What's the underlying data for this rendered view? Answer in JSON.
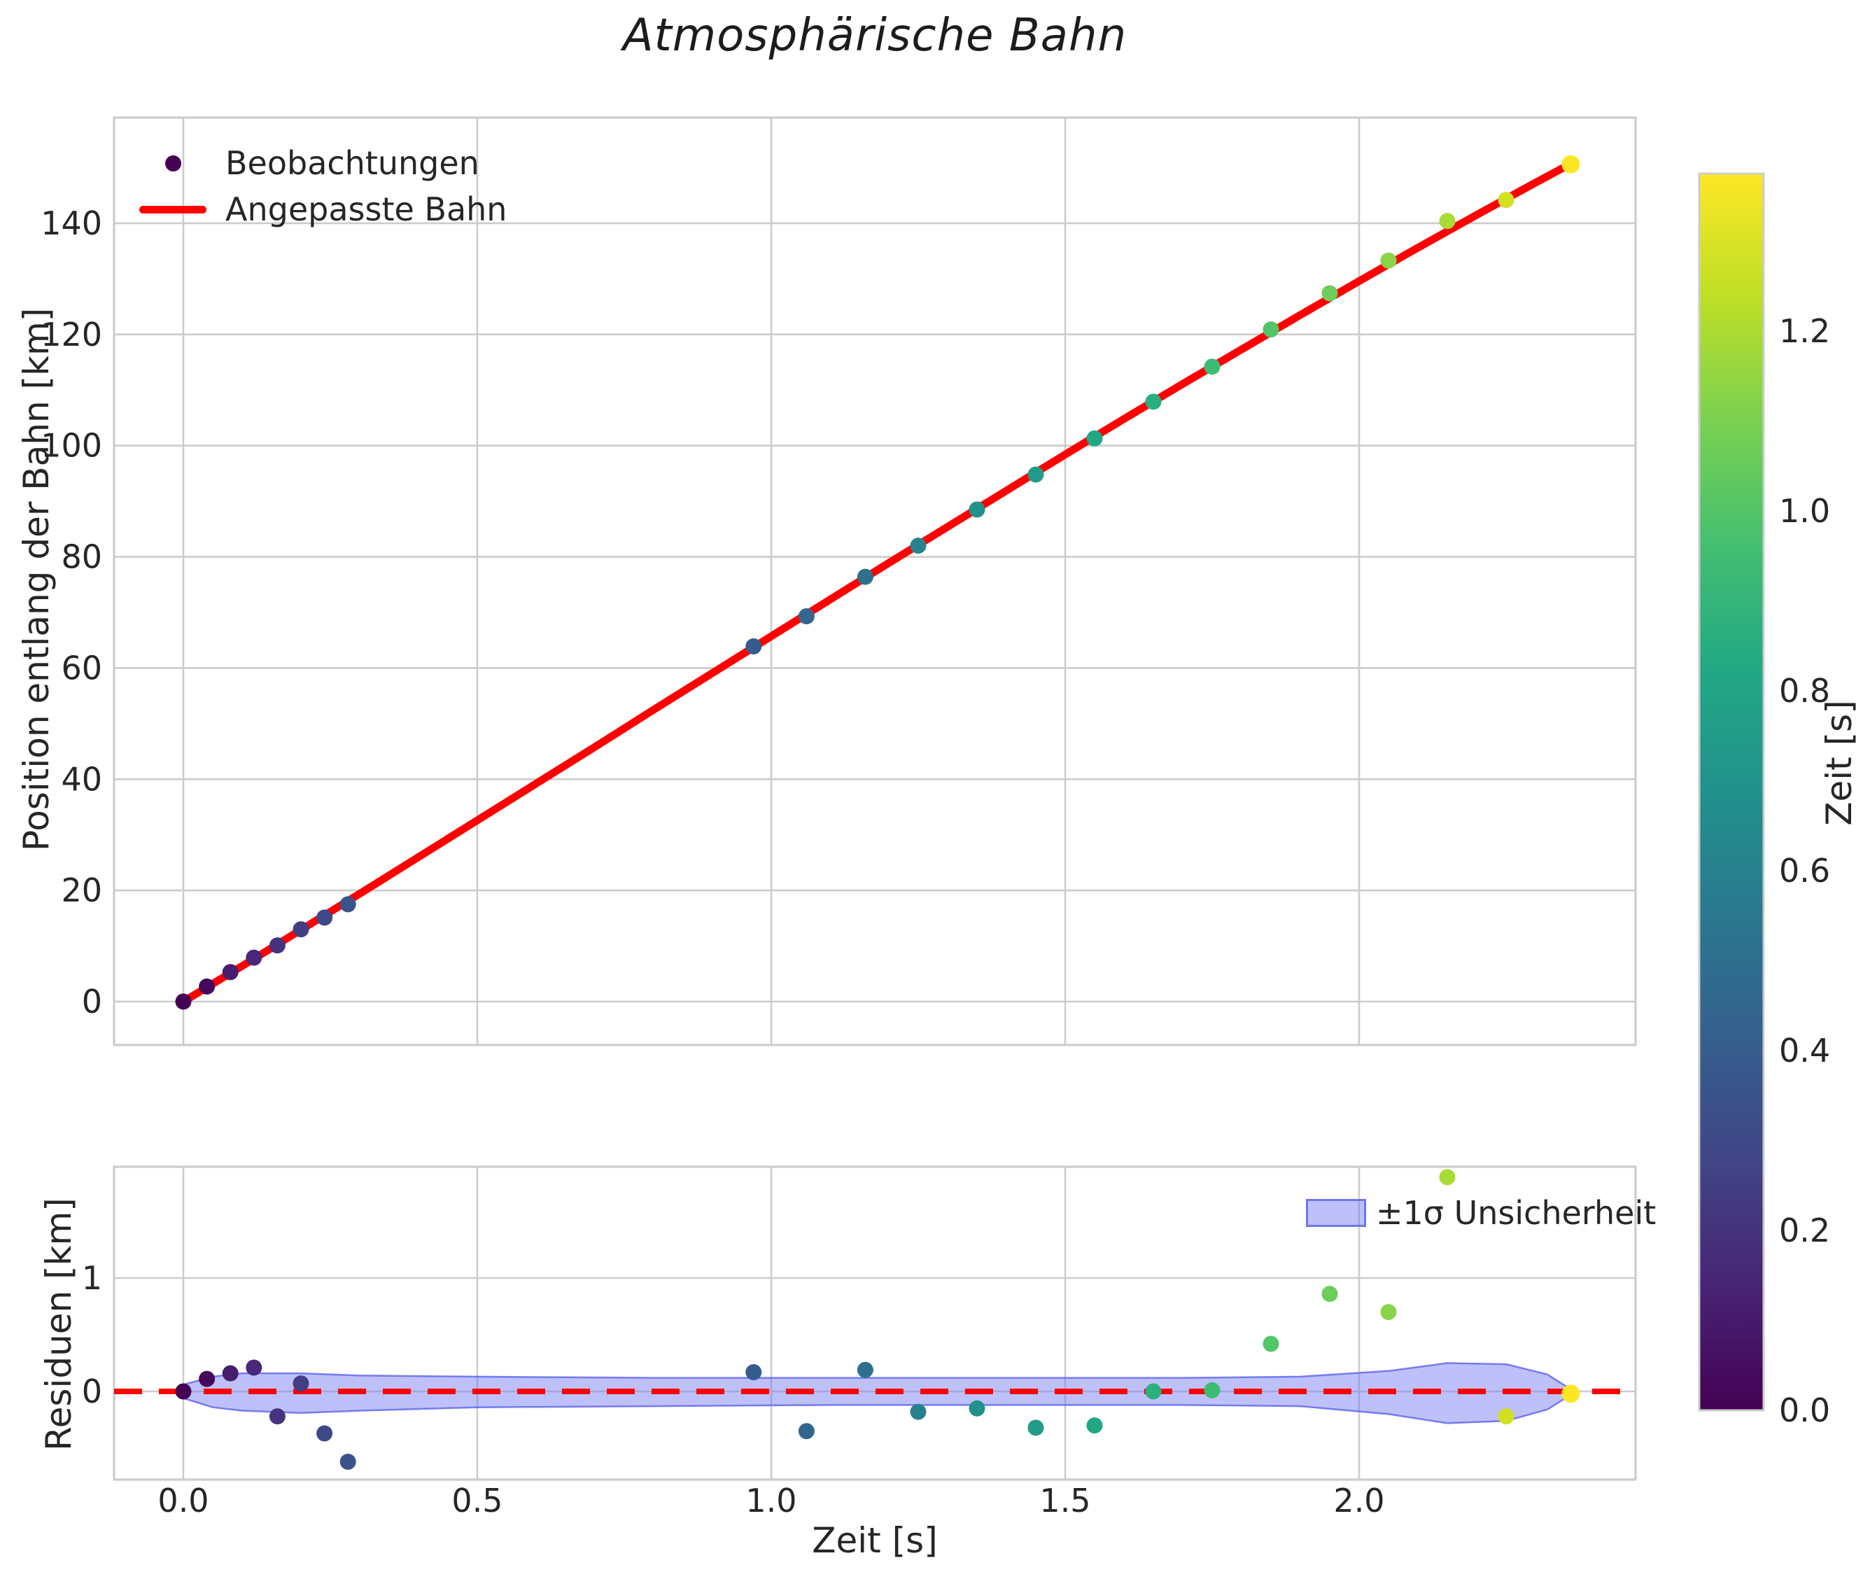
{
  "title": "Atmosphärische Bahn",
  "colors": {
    "fit_line": "#ff0000",
    "zero_line": "#ff0000",
    "grid": "#cccccc",
    "spine": "#cccccc",
    "text": "#262626",
    "band_fill": "rgba(110,115,245,0.45)",
    "band_stroke": "rgba(92,97,238,0.8)",
    "legend_dot": "#440154"
  },
  "main_legend": {
    "observations_label": "Beobachtungen",
    "fit_label": "Angepasste Bahn"
  },
  "residual_legend": {
    "band_label": "±1σ Unsicherheit"
  },
  "colorbar": {
    "label": "Zeit [s]",
    "min": 0.0,
    "max": 1.375,
    "tick_labels": [
      "0.0",
      "0.2",
      "0.4",
      "0.6",
      "0.8",
      "1.0",
      "1.2"
    ],
    "tick_values": [
      0.0,
      0.2,
      0.4,
      0.6,
      0.8,
      1.0,
      1.2
    ],
    "gradient_top_to_bottom": [
      "#fde725",
      "#bddf26",
      "#7ad151",
      "#44bf70",
      "#22a884",
      "#21918c",
      "#2a788e",
      "#355f8d",
      "#414487",
      "#482475",
      "#440154"
    ]
  },
  "chart_data": [
    {
      "type": "scatter",
      "title": "Atmosphärische Bahn",
      "xlabel": "",
      "ylabel": "Position entlang der Bahn [km]",
      "xlim": [
        -0.12,
        2.47
      ],
      "ylim": [
        -7.5,
        158.5
      ],
      "grid": true,
      "legend_position": "upper left",
      "ytick_labels": [
        "0",
        "20",
        "40",
        "60",
        "80",
        "100",
        "120",
        "140"
      ],
      "ytick_values": [
        0,
        20,
        40,
        60,
        80,
        100,
        120,
        140
      ],
      "xtick_values": [
        0.0,
        0.5,
        1.0,
        1.5,
        2.0
      ],
      "series": [
        {
          "name": "Beobachtungen",
          "type": "scatter",
          "x": [
            0.0,
            0.04,
            0.08,
            0.12,
            0.16,
            0.2,
            0.24,
            0.28,
            0.97,
            1.06,
            1.16,
            1.25,
            1.35,
            1.45,
            1.55,
            1.65,
            1.75,
            1.85,
            1.95,
            2.05,
            2.15,
            2.25,
            2.36
          ],
          "y": [
            0.0,
            2.7,
            5.3,
            7.9,
            10.1,
            13.0,
            15.1,
            17.5,
            63.9,
            69.3,
            76.4,
            82.0,
            88.5,
            94.8,
            101.3,
            107.9,
            114.2,
            120.9,
            127.4,
            133.3,
            140.4,
            144.2,
            150.6
          ],
          "point_colors": [
            "#440154",
            "#46085c",
            "#471d6e",
            "#482878",
            "#46327e",
            "#433d84",
            "#3f4889",
            "#3b528b",
            "#365c8d",
            "#32668e",
            "#2e708e",
            "#26838e",
            "#21918c",
            "#219c88",
            "#22a785",
            "#2ab07f",
            "#3dbc74",
            "#52c569",
            "#6ccd5a",
            "#8ad449",
            "#a8db34",
            "#d1e021",
            "#fde725"
          ]
        },
        {
          "name": "Angepasste Bahn",
          "type": "line",
          "color": "#ff0000",
          "x": [
            0,
            0.1,
            0.2,
            0.3,
            0.4,
            0.5,
            0.6,
            0.7,
            0.8,
            0.9,
            1.0,
            1.1,
            1.2,
            1.3,
            1.4,
            1.5,
            1.6,
            1.7,
            1.8,
            1.9,
            2.0,
            2.1,
            2.2,
            2.3,
            2.36
          ],
          "y": [
            0,
            6.4,
            12.9,
            19.4,
            26.0,
            32.6,
            39.2,
            45.8,
            52.5,
            59.1,
            65.7,
            72.3,
            78.9,
            85.4,
            91.9,
            98.4,
            104.8,
            111.1,
            117.3,
            123.5,
            129.6,
            135.6,
            141.5,
            147.3,
            150.7
          ]
        }
      ]
    },
    {
      "type": "scatter",
      "xlabel": "Zeit [s]",
      "ylabel": "Residuen [km]",
      "xlim": [
        -0.12,
        2.47
      ],
      "ylim": [
        -0.78,
        1.98
      ],
      "grid": true,
      "ytick_labels": [
        "0",
        "1"
      ],
      "ytick_values": [
        0,
        1
      ],
      "xtick_labels": [
        "0.0",
        "0.5",
        "1.0",
        "1.5",
        "2.0"
      ],
      "xtick_values": [
        0.0,
        0.5,
        1.0,
        1.5,
        2.0
      ],
      "zero_line": {
        "y": 0,
        "style": "dashed",
        "color": "#ff0000"
      },
      "points": {
        "x": [
          0.0,
          0.04,
          0.08,
          0.12,
          0.16,
          0.2,
          0.24,
          0.28,
          0.97,
          1.06,
          1.16,
          1.25,
          1.35,
          1.45,
          1.55,
          1.65,
          1.75,
          1.85,
          1.95,
          2.05,
          2.15,
          2.25,
          2.36
        ],
        "y": [
          0.0,
          0.11,
          0.16,
          0.21,
          -0.22,
          0.07,
          -0.37,
          -0.62,
          0.17,
          -0.35,
          0.19,
          -0.18,
          -0.15,
          -0.32,
          -0.3,
          0.0,
          0.01,
          0.42,
          0.86,
          0.7,
          1.89,
          -0.22,
          -0.02
        ],
        "point_colors": [
          "#440154",
          "#46085c",
          "#471d6e",
          "#482878",
          "#46327e",
          "#433d84",
          "#3f4889",
          "#3b528b",
          "#365c8d",
          "#32668e",
          "#2e708e",
          "#26838e",
          "#21918c",
          "#219c88",
          "#22a785",
          "#2ab07f",
          "#3dbc74",
          "#52c569",
          "#6ccd5a",
          "#8ad449",
          "#a8db34",
          "#d1e021",
          "#fde725"
        ]
      },
      "band": {
        "name": "±1σ Unsicherheit",
        "x": [
          0.0,
          0.05,
          0.1,
          0.2,
          0.3,
          0.5,
          0.8,
          1.1,
          1.4,
          1.7,
          1.9,
          2.05,
          2.15,
          2.25,
          2.32,
          2.36
        ],
        "upper": [
          0.06,
          0.13,
          0.16,
          0.16,
          0.14,
          0.13,
          0.12,
          0.12,
          0.12,
          0.12,
          0.13,
          0.18,
          0.25,
          0.24,
          0.15,
          0.02
        ],
        "lower": [
          -0.06,
          -0.14,
          -0.17,
          -0.19,
          -0.17,
          -0.14,
          -0.13,
          -0.12,
          -0.12,
          -0.12,
          -0.13,
          -0.2,
          -0.28,
          -0.26,
          -0.16,
          -0.03
        ]
      }
    }
  ]
}
